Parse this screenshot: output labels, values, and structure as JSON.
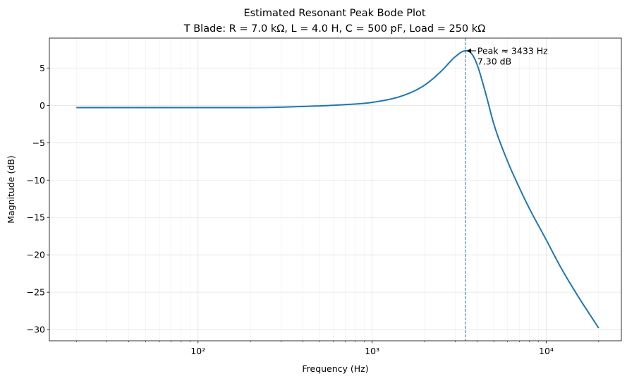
{
  "chart_data": {
    "type": "line",
    "title": "Estimated Resonant Peak Bode Plot",
    "subtitle": "T Blade: R = 7.0 kΩ, L = 4.0 H, C = 500 pF, Load = 250 kΩ",
    "xlabel": "Frequency (Hz)",
    "ylabel": "Magnitude (dB)",
    "xscale": "log",
    "xlim": [
      14,
      27000
    ],
    "ylim": [
      -31.5,
      9
    ],
    "grid": true,
    "x_ticks": [
      100,
      1000,
      10000
    ],
    "x_tick_labels": [
      "10²",
      "10³",
      "10⁴"
    ],
    "y_ticks": [
      -30,
      -25,
      -20,
      -15,
      -10,
      -5,
      0,
      5
    ],
    "y_tick_labels": [
      "−30",
      "−25",
      "−20",
      "−15",
      "−10",
      "−5",
      "0",
      "5"
    ],
    "line_color": "#1f77b4",
    "series": [
      {
        "x": [
          20,
          50,
          100,
          200,
          400,
          700,
          1000,
          1500,
          2000,
          2500,
          3000,
          3433,
          3700,
          4000,
          4500,
          5000,
          6000,
          7000,
          8000,
          10000,
          12000,
          15000,
          20000
        ],
        "y": [
          -0.3,
          -0.3,
          -0.3,
          -0.3,
          -0.15,
          0.1,
          0.4,
          1.3,
          2.7,
          4.6,
          6.5,
          7.3,
          7.0,
          5.5,
          1.5,
          -2.5,
          -7.5,
          -11.0,
          -13.8,
          -18.0,
          -21.5,
          -25.3,
          -29.8
        ]
      }
    ],
    "peak_line": {
      "x": 3433,
      "color": "#1f77b4"
    },
    "annotation": {
      "line1": "Peak ≈ 3433 Hz",
      "line2": "7.30 dB",
      "x": 3433,
      "y": 7.3
    }
  }
}
